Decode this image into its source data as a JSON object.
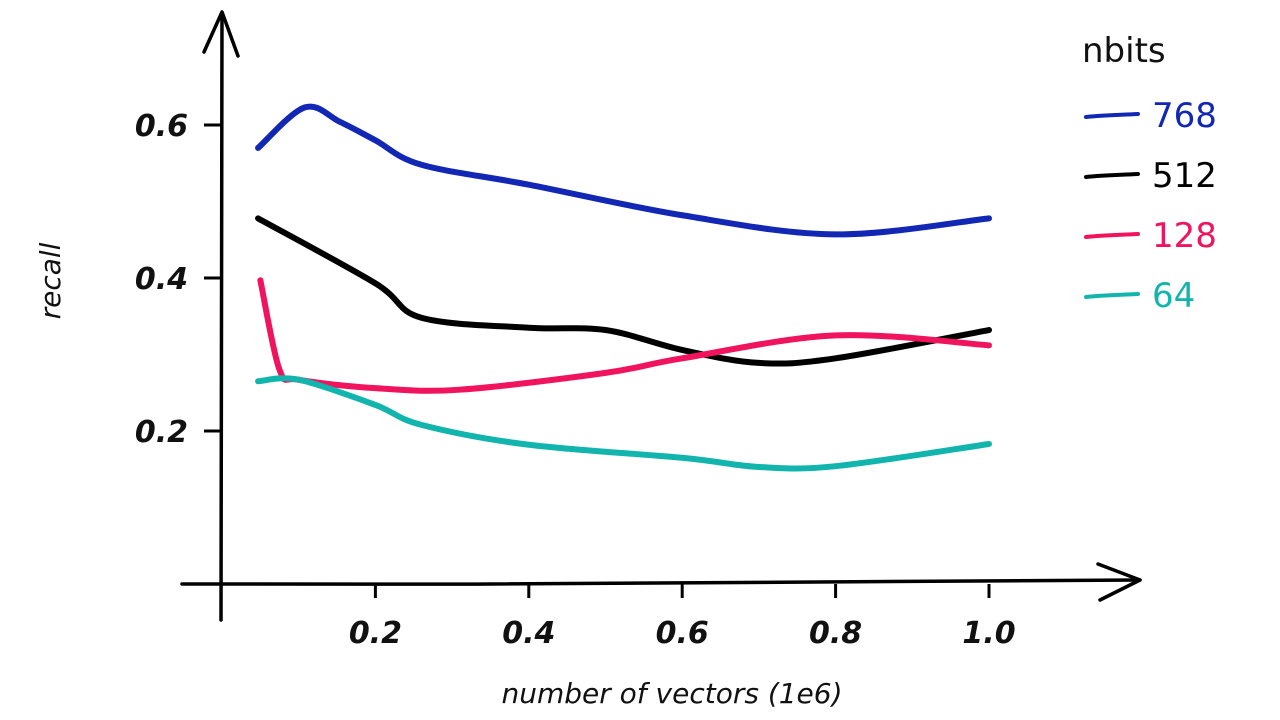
{
  "chart_data": {
    "type": "line",
    "title": "",
    "xlabel": "number of vectors (1e6)",
    "ylabel": "recall",
    "xlim": [
      0,
      1.1
    ],
    "ylim": [
      0,
      0.75
    ],
    "x_ticks": [
      "0.2",
      "0.4",
      "0.6",
      "0.8",
      "1.0"
    ],
    "y_ticks": [
      "0.2",
      "0.4",
      "0.6"
    ],
    "grid": false,
    "legend": {
      "title": "nbits",
      "placement": "top-right"
    },
    "series": [
      {
        "name": "768",
        "color": "#1228b4",
        "x": [
          0.047,
          0.108,
          0.154,
          0.2,
          0.26,
          0.4,
          0.6,
          0.8,
          1.0
        ],
        "y": [
          0.57,
          0.623,
          0.604,
          0.58,
          0.548,
          0.522,
          0.482,
          0.457,
          0.478
        ]
      },
      {
        "name": "512",
        "color": "#000000",
        "x": [
          0.047,
          0.2,
          0.26,
          0.4,
          0.5,
          0.6,
          0.7,
          0.8,
          1.0
        ],
        "y": [
          0.478,
          0.393,
          0.348,
          0.335,
          0.332,
          0.306,
          0.289,
          0.295,
          0.332
        ]
      },
      {
        "name": "128",
        "color": "#f0135e",
        "x": [
          0.05,
          0.075,
          0.1,
          0.2,
          0.31,
          0.5,
          0.6,
          0.8,
          1.0
        ],
        "y": [
          0.397,
          0.28,
          0.267,
          0.256,
          0.254,
          0.276,
          0.295,
          0.325,
          0.312
        ]
      },
      {
        "name": "64",
        "color": "#12b5ad",
        "x": [
          0.047,
          0.1,
          0.2,
          0.26,
          0.4,
          0.6,
          0.7,
          0.8,
          1.0
        ],
        "y": [
          0.265,
          0.267,
          0.234,
          0.208,
          0.182,
          0.165,
          0.153,
          0.154,
          0.183
        ]
      }
    ]
  }
}
